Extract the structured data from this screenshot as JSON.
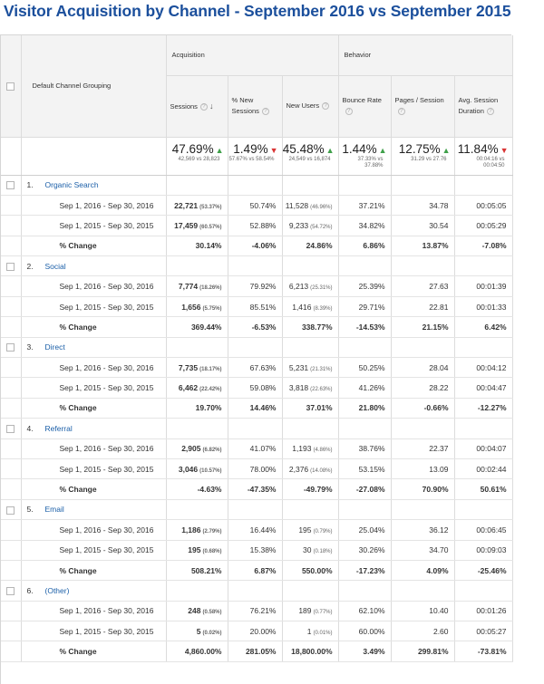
{
  "title": "Visitor Acquisition by Channel - September 2016 vs September 2015",
  "header": {
    "dimension_label": "Default Channel Grouping",
    "group_acquisition": "Acquisition",
    "group_behavior": "Behavior",
    "columns": [
      {
        "label": "Sessions",
        "sort_arrow": "↓"
      },
      {
        "label": "% New Sessions"
      },
      {
        "label": "New Users"
      },
      {
        "label": "Bounce Rate"
      },
      {
        "label": "Pages / Session"
      },
      {
        "label": "Avg. Session Duration"
      }
    ],
    "help_glyph": "?"
  },
  "totals": [
    {
      "value": "47.69%",
      "dir": "up",
      "sub": "42,569 vs 28,823"
    },
    {
      "value": "1.49%",
      "dir": "down",
      "sub": "57.67% vs 58.54%"
    },
    {
      "value": "45.48%",
      "dir": "up",
      "sub": "24,549 vs 16,874"
    },
    {
      "value": "1.44%",
      "dir": "up",
      "sub": "37.33% vs 37.88%"
    },
    {
      "value": "12.75%",
      "dir": "up",
      "sub": "31.29 vs 27.76"
    },
    {
      "value": "11.84%",
      "dir": "down",
      "sub": "00:04:16 vs 00:04:50"
    }
  ],
  "arrows": {
    "up": "▲",
    "down": "▼"
  },
  "channels": [
    {
      "num": "1.",
      "name": "Organic Search",
      "rows": [
        {
          "label": "Sep 1, 2016 - Sep 30, 2016",
          "sessions": "22,721",
          "sessions_pct": "(53.37%)",
          "new_sessions": "50.74%",
          "new_users": "11,528",
          "new_users_pct": "(46.96%)",
          "bounce": "37.21%",
          "pages": "34.78",
          "duration": "00:05:05"
        },
        {
          "label": "Sep 1, 2015 - Sep 30, 2015",
          "sessions": "17,459",
          "sessions_pct": "(60.57%)",
          "new_sessions": "52.88%",
          "new_users": "9,233",
          "new_users_pct": "(54.72%)",
          "bounce": "34.82%",
          "pages": "30.54",
          "duration": "00:05:29"
        },
        {
          "label": "% Change",
          "sessions": "30.14%",
          "sessions_pct": "",
          "new_sessions": "-4.06%",
          "new_users": "24.86%",
          "new_users_pct": "",
          "bounce": "6.86%",
          "pages": "13.87%",
          "duration": "-7.08%"
        }
      ]
    },
    {
      "num": "2.",
      "name": "Social",
      "rows": [
        {
          "label": "Sep 1, 2016 - Sep 30, 2016",
          "sessions": "7,774",
          "sessions_pct": "(18.26%)",
          "new_sessions": "79.92%",
          "new_users": "6,213",
          "new_users_pct": "(25.31%)",
          "bounce": "25.39%",
          "pages": "27.63",
          "duration": "00:01:39"
        },
        {
          "label": "Sep 1, 2015 - Sep 30, 2015",
          "sessions": "1,656",
          "sessions_pct": "(5.75%)",
          "new_sessions": "85.51%",
          "new_users": "1,416",
          "new_users_pct": "(8.39%)",
          "bounce": "29.71%",
          "pages": "22.81",
          "duration": "00:01:33"
        },
        {
          "label": "% Change",
          "sessions": "369.44%",
          "sessions_pct": "",
          "new_sessions": "-6.53%",
          "new_users": "338.77%",
          "new_users_pct": "",
          "bounce": "-14.53%",
          "pages": "21.15%",
          "duration": "6.42%"
        }
      ]
    },
    {
      "num": "3.",
      "name": "Direct",
      "rows": [
        {
          "label": "Sep 1, 2016 - Sep 30, 2016",
          "sessions": "7,735",
          "sessions_pct": "(18.17%)",
          "new_sessions": "67.63%",
          "new_users": "5,231",
          "new_users_pct": "(21.31%)",
          "bounce": "50.25%",
          "pages": "28.04",
          "duration": "00:04:12"
        },
        {
          "label": "Sep 1, 2015 - Sep 30, 2015",
          "sessions": "6,462",
          "sessions_pct": "(22.42%)",
          "new_sessions": "59.08%",
          "new_users": "3,818",
          "new_users_pct": "(22.63%)",
          "bounce": "41.26%",
          "pages": "28.22",
          "duration": "00:04:47"
        },
        {
          "label": "% Change",
          "sessions": "19.70%",
          "sessions_pct": "",
          "new_sessions": "14.46%",
          "new_users": "37.01%",
          "new_users_pct": "",
          "bounce": "21.80%",
          "pages": "-0.66%",
          "duration": "-12.27%"
        }
      ]
    },
    {
      "num": "4.",
      "name": "Referral",
      "rows": [
        {
          "label": "Sep 1, 2016 - Sep 30, 2016",
          "sessions": "2,905",
          "sessions_pct": "(6.82%)",
          "new_sessions": "41.07%",
          "new_users": "1,193",
          "new_users_pct": "(4.86%)",
          "bounce": "38.76%",
          "pages": "22.37",
          "duration": "00:04:07"
        },
        {
          "label": "Sep 1, 2015 - Sep 30, 2015",
          "sessions": "3,046",
          "sessions_pct": "(10.57%)",
          "new_sessions": "78.00%",
          "new_users": "2,376",
          "new_users_pct": "(14.08%)",
          "bounce": "53.15%",
          "pages": "13.09",
          "duration": "00:02:44"
        },
        {
          "label": "% Change",
          "sessions": "-4.63%",
          "sessions_pct": "",
          "new_sessions": "-47.35%",
          "new_users": "-49.79%",
          "new_users_pct": "",
          "bounce": "-27.08%",
          "pages": "70.90%",
          "duration": "50.61%"
        }
      ]
    },
    {
      "num": "5.",
      "name": "Email",
      "rows": [
        {
          "label": "Sep 1, 2016 - Sep 30, 2016",
          "sessions": "1,186",
          "sessions_pct": "(2.79%)",
          "new_sessions": "16.44%",
          "new_users": "195",
          "new_users_pct": "(0.79%)",
          "bounce": "25.04%",
          "pages": "36.12",
          "duration": "00:06:45"
        },
        {
          "label": "Sep 1, 2015 - Sep 30, 2015",
          "sessions": "195",
          "sessions_pct": "(0.68%)",
          "new_sessions": "15.38%",
          "new_users": "30",
          "new_users_pct": "(0.18%)",
          "bounce": "30.26%",
          "pages": "34.70",
          "duration": "00:09:03"
        },
        {
          "label": "% Change",
          "sessions": "508.21%",
          "sessions_pct": "",
          "new_sessions": "6.87%",
          "new_users": "550.00%",
          "new_users_pct": "",
          "bounce": "-17.23%",
          "pages": "4.09%",
          "duration": "-25.46%"
        }
      ]
    },
    {
      "num": "6.",
      "name": "(Other)",
      "rows": [
        {
          "label": "Sep 1, 2016 - Sep 30, 2016",
          "sessions": "248",
          "sessions_pct": "(0.58%)",
          "new_sessions": "76.21%",
          "new_users": "189",
          "new_users_pct": "(0.77%)",
          "bounce": "62.10%",
          "pages": "10.40",
          "duration": "00:01:26"
        },
        {
          "label": "Sep 1, 2015 - Sep 30, 2015",
          "sessions": "5",
          "sessions_pct": "(0.02%)",
          "new_sessions": "20.00%",
          "new_users": "1",
          "new_users_pct": "(0.01%)",
          "bounce": "60.00%",
          "pages": "2.60",
          "duration": "00:05:27"
        },
        {
          "label": "% Change",
          "sessions": "4,860.00%",
          "sessions_pct": "",
          "new_sessions": "281.05%",
          "new_users": "18,800.00%",
          "new_users_pct": "",
          "bounce": "3.49%",
          "pages": "299.81%",
          "duration": "-73.81%"
        }
      ]
    }
  ]
}
